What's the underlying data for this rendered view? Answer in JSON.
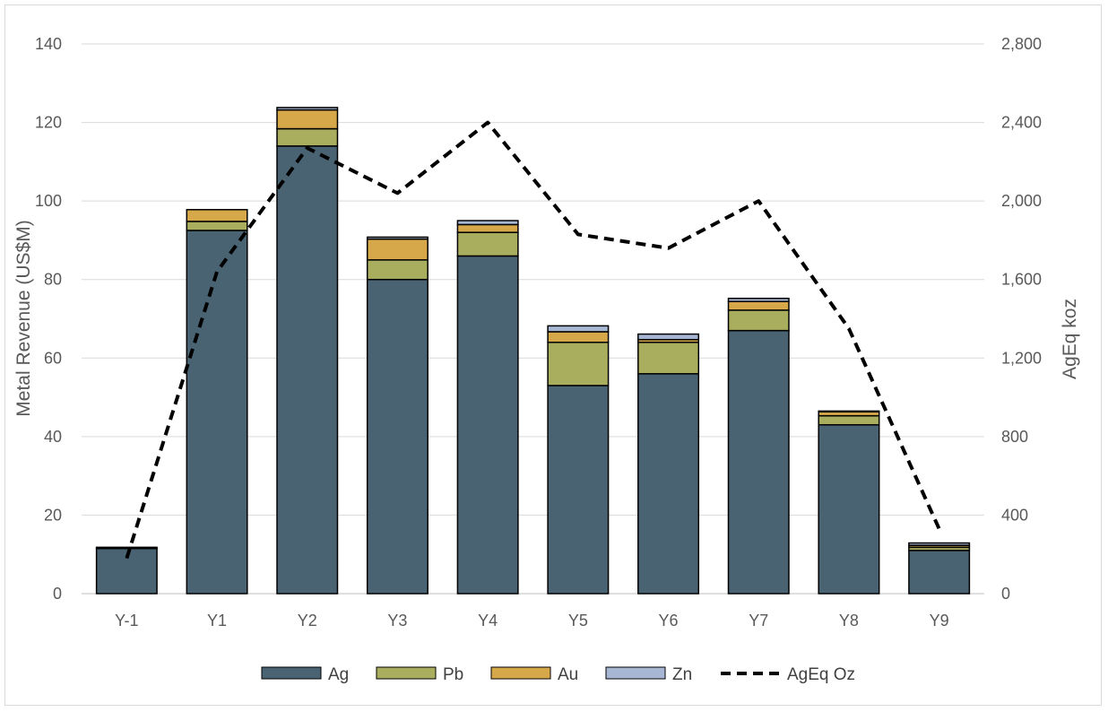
{
  "chart_data": {
    "type": "bar",
    "stacked": true,
    "categories": [
      "Y-1",
      "Y1",
      "Y2",
      "Y3",
      "Y4",
      "Y5",
      "Y6",
      "Y7",
      "Y8",
      "Y9"
    ],
    "series": [
      {
        "name": "Ag",
        "color": "#4a6373",
        "values": [
          11.5,
          92.5,
          114,
          80,
          86,
          53,
          56,
          67,
          43,
          11
        ]
      },
      {
        "name": "Pb",
        "color": "#a9ad5e",
        "values": [
          0,
          2.3,
          4.4,
          5,
          6,
          11,
          8,
          5.2,
          2.3,
          0.8
        ]
      },
      {
        "name": "Au",
        "color": "#d6a84a",
        "values": [
          0.3,
          3,
          4.8,
          5.3,
          2,
          2.7,
          0.7,
          2.2,
          1,
          0.5
        ]
      },
      {
        "name": "Zn",
        "color": "#a7b6d3",
        "values": [
          0,
          0,
          0.6,
          0.5,
          1,
          1.5,
          1.4,
          0.8,
          0.2,
          0.6
        ]
      }
    ],
    "line_series": {
      "name": "AgEq Oz",
      "color": "#000000",
      "axis": "right",
      "values": [
        180,
        1640,
        2270,
        2040,
        2400,
        1830,
        1760,
        2000,
        1350,
        330
      ]
    },
    "ylabel": "Metal Revenue (US$M)",
    "y2label": "AgEq koz",
    "ylim": [
      0,
      140
    ],
    "y2lim": [
      0,
      2800
    ],
    "yticks": [
      "0",
      "20",
      "40",
      "60",
      "80",
      "100",
      "120",
      "140"
    ],
    "y2ticks": [
      "0",
      "400",
      "800",
      "1,200",
      "1,600",
      "2,000",
      "2,400",
      "2,800"
    ],
    "grid": true,
    "legend_position": "bottom",
    "legend": [
      "Ag",
      "Pb",
      "Au",
      "Zn",
      "AgEq Oz"
    ]
  }
}
